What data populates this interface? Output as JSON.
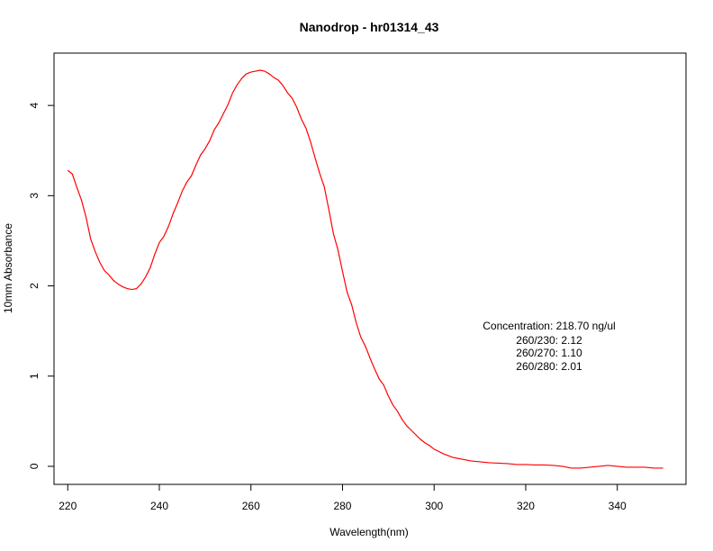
{
  "chart_data": {
    "type": "line",
    "title": "Nanodrop - hr01314_43",
    "xlabel": "Wavelength(nm)",
    "ylabel": "10mm Absorbance",
    "xlim": [
      217,
      355
    ],
    "ylim": [
      -0.2,
      4.58
    ],
    "xticks": [
      220,
      240,
      260,
      280,
      300,
      320,
      340
    ],
    "yticks": [
      0,
      1,
      2,
      3,
      4
    ],
    "grid": false,
    "line_color": "#ff0000",
    "series": [
      {
        "x": [
          220,
          221,
          222,
          223,
          224,
          225,
          226,
          227,
          228,
          229,
          230,
          231,
          232,
          233,
          234,
          235,
          236,
          237,
          238,
          239,
          240,
          241,
          242,
          243,
          244,
          245,
          246,
          247,
          248,
          249,
          250,
          251,
          252,
          253,
          254,
          255,
          256,
          257,
          258,
          259,
          260,
          261,
          262,
          263,
          264,
          265,
          266,
          267,
          268,
          269,
          270,
          271,
          272,
          273,
          274,
          275,
          276,
          277,
          278,
          279,
          280,
          281,
          282,
          283,
          284,
          285,
          286,
          287,
          288,
          289,
          290,
          291,
          292,
          293,
          294,
          295,
          296,
          297,
          298,
          299,
          300,
          302,
          304,
          306,
          308,
          310,
          312,
          314,
          316,
          318,
          320,
          322,
          324,
          326,
          328,
          330,
          332,
          334,
          336,
          338,
          340,
          342,
          344,
          346,
          348,
          350
        ],
        "y": [
          3.28,
          3.24,
          3.09,
          2.95,
          2.76,
          2.52,
          2.38,
          2.26,
          2.17,
          2.12,
          2.06,
          2.02,
          1.99,
          1.97,
          1.96,
          1.97,
          2.02,
          2.1,
          2.2,
          2.35,
          2.48,
          2.55,
          2.66,
          2.8,
          2.92,
          3.05,
          3.15,
          3.22,
          3.34,
          3.45,
          3.52,
          3.61,
          3.73,
          3.81,
          3.91,
          4.01,
          4.14,
          4.23,
          4.3,
          4.35,
          4.37,
          4.38,
          4.39,
          4.38,
          4.35,
          4.31,
          4.28,
          4.22,
          4.14,
          4.08,
          3.98,
          3.85,
          3.75,
          3.6,
          3.42,
          3.25,
          3.1,
          2.85,
          2.58,
          2.4,
          2.16,
          1.93,
          1.79,
          1.59,
          1.43,
          1.33,
          1.2,
          1.08,
          0.97,
          0.9,
          0.78,
          0.68,
          0.61,
          0.52,
          0.45,
          0.4,
          0.35,
          0.3,
          0.26,
          0.23,
          0.19,
          0.14,
          0.1,
          0.08,
          0.06,
          0.05,
          0.04,
          0.035,
          0.03,
          0.02,
          0.02,
          0.015,
          0.015,
          0.01,
          0.0,
          -0.02,
          -0.02,
          -0.01,
          0.0,
          0.01,
          0.0,
          -0.01,
          -0.01,
          -0.01,
          -0.02,
          -0.02
        ]
      }
    ],
    "annotations": [
      "Concentration: 218.70 ng/ul",
      "260/230: 2.12",
      "260/270: 1.10",
      "260/280: 2.01"
    ]
  }
}
